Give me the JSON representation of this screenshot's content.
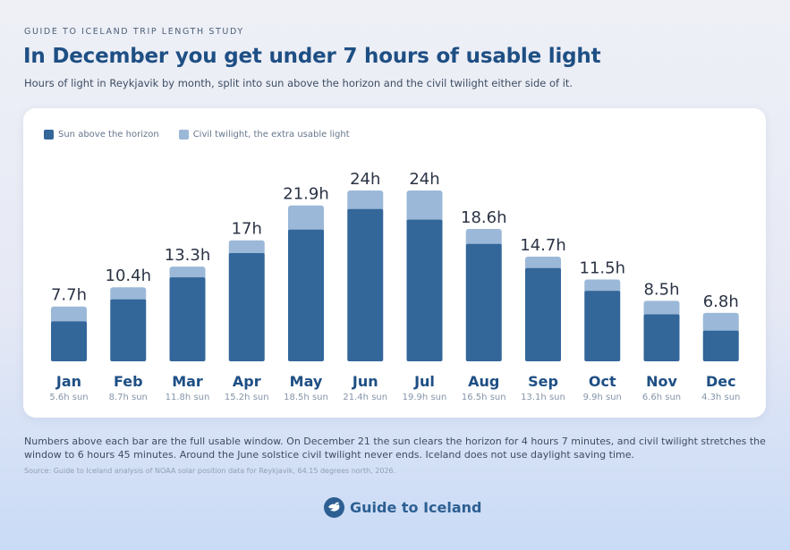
{
  "header": {
    "kicker": "GUIDE TO ICELAND TRIP LENGTH STUDY",
    "title": "In December you get under 7 hours of usable light",
    "subtitle": "Hours of light in Reykjavik by month, split into sun above the horizon and the civil twilight either side of it."
  },
  "colors": {
    "sun": "#336699",
    "twilight": "#9bb8d8",
    "value_label": "#2b3445",
    "month_label": "#1e4f84",
    "sub_label": "#8594a8"
  },
  "chart_data": {
    "type": "bar",
    "stacked": true,
    "categories": [
      "Jan",
      "Feb",
      "Mar",
      "Apr",
      "May",
      "Jun",
      "Jul",
      "Aug",
      "Sep",
      "Oct",
      "Nov",
      "Dec"
    ],
    "series": [
      {
        "name": "Sun above the horizon",
        "values": [
          5.6,
          8.7,
          11.8,
          15.2,
          18.5,
          21.4,
          19.9,
          16.5,
          13.1,
          9.9,
          6.6,
          4.3
        ]
      },
      {
        "name": "Civil twilight, the extra usable light",
        "values": [
          2.1,
          1.7,
          1.5,
          1.8,
          3.4,
          2.6,
          4.1,
          2.1,
          1.6,
          1.6,
          1.9,
          2.5
        ]
      }
    ],
    "total_labels": [
      "7.7h",
      "10.4h",
      "13.3h",
      "17h",
      "21.9h",
      "24h",
      "24h",
      "18.6h",
      "14.7h",
      "11.5h",
      "8.5h",
      "6.8h"
    ],
    "sun_labels": [
      "5.6h sun",
      "8.7h sun",
      "11.8h sun",
      "15.2h sun",
      "18.5h sun",
      "21.4h sun",
      "19.9h sun",
      "16.5h sun",
      "13.1h sun",
      "9.9h sun",
      "6.6h sun",
      "4.3h sun"
    ],
    "ylim": [
      0,
      24
    ],
    "grid": false,
    "legend_position": "top-left"
  },
  "legend": {
    "sun": "Sun above the horizon",
    "twilight": "Civil twilight, the extra usable light"
  },
  "footnote": "Numbers above each bar are the full usable window. On December 21 the sun clears the horizon for 4 hours 7 minutes, and civil twilight stretches the window to 6 hours 45 minutes. Around the June solstice civil twilight never ends. Iceland does not use daylight saving time.",
  "source": "Source: Guide to Iceland analysis of NOAA solar position data for Reykjavik, 64.15 degrees north, 2026.",
  "brand": {
    "name": "Guide to Iceland",
    "logo_icon": "bird-icon"
  }
}
